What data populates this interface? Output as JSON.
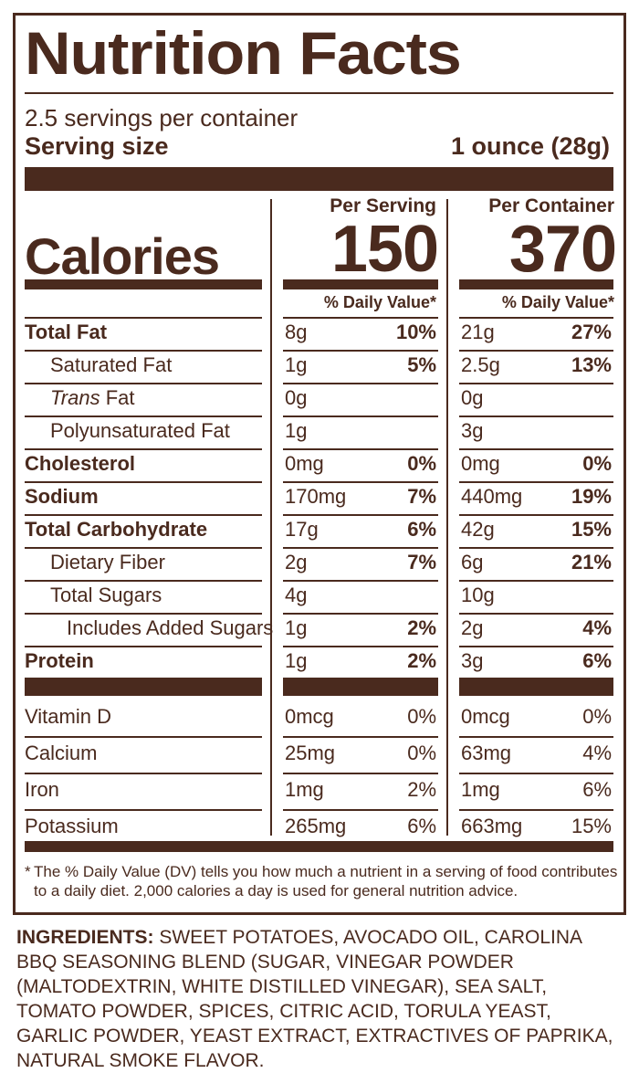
{
  "label": {
    "title": "Nutrition Facts",
    "servings_per_container": "2.5 servings per container",
    "serving_size_label": "Serving size",
    "serving_size_value": "1 ounce (28g)",
    "col_serving": "Per Serving",
    "col_container": "Per Container",
    "calories_label": "Calories",
    "calories_serving": "150",
    "calories_container": "370",
    "dv_header": "% Daily Value*",
    "rows": [
      {
        "label": "Total Fat",
        "bold": true,
        "indent": 0,
        "s_amt": "8g",
        "s_pct": "10%",
        "c_amt": "21g",
        "c_pct": "27%"
      },
      {
        "label": "Saturated Fat",
        "bold": false,
        "indent": 1,
        "s_amt": "1g",
        "s_pct": "5%",
        "c_amt": "2.5g",
        "c_pct": "13%"
      },
      {
        "label": "Trans Fat",
        "bold": false,
        "indent": 1,
        "s_amt": "0g",
        "s_pct": "",
        "c_amt": "0g",
        "c_pct": ""
      },
      {
        "label": "Polyunsaturated Fat",
        "bold": false,
        "indent": 1,
        "s_amt": "1g",
        "s_pct": "",
        "c_amt": "3g",
        "c_pct": ""
      },
      {
        "label": "Cholesterol",
        "bold": true,
        "indent": 0,
        "s_amt": "0mg",
        "s_pct": "0%",
        "c_amt": "0mg",
        "c_pct": "0%"
      },
      {
        "label": "Sodium",
        "bold": true,
        "indent": 0,
        "s_amt": "170mg",
        "s_pct": "7%",
        "c_amt": "440mg",
        "c_pct": "19%"
      },
      {
        "label": "Total Carbohydrate",
        "bold": true,
        "indent": 0,
        "s_amt": "17g",
        "s_pct": "6%",
        "c_amt": "42g",
        "c_pct": "15%"
      },
      {
        "label": "Dietary Fiber",
        "bold": false,
        "indent": 1,
        "s_amt": "2g",
        "s_pct": "7%",
        "c_amt": "6g",
        "c_pct": "21%"
      },
      {
        "label": "Total Sugars",
        "bold": false,
        "indent": 1,
        "s_amt": "4g",
        "s_pct": "",
        "c_amt": "10g",
        "c_pct": ""
      },
      {
        "label": "Includes Added Sugars",
        "bold": false,
        "indent": 2,
        "s_amt": "1g",
        "s_pct": "2%",
        "c_amt": "2g",
        "c_pct": "4%"
      },
      {
        "label": "Protein",
        "bold": true,
        "indent": 0,
        "s_amt": "1g",
        "s_pct": "2%",
        "c_amt": "3g",
        "c_pct": "6%"
      }
    ],
    "vitamins": [
      {
        "label": "Vitamin D",
        "s_amt": "0mcg",
        "s_pct": "0%",
        "c_amt": "0mcg",
        "c_pct": "0%"
      },
      {
        "label": "Calcium",
        "s_amt": "25mg",
        "s_pct": "0%",
        "c_amt": "63mg",
        "c_pct": "4%"
      },
      {
        "label": "Iron",
        "s_amt": "1mg",
        "s_pct": "2%",
        "c_amt": "1mg",
        "c_pct": "6%"
      },
      {
        "label": "Potassium",
        "s_amt": "265mg",
        "s_pct": "6%",
        "c_amt": "663mg",
        "c_pct": "15%"
      }
    ],
    "footnote_star": "*",
    "footnote": "The % Daily Value (DV) tells you how much a nutrient in a serving of food contributes to a daily diet. 2,000 calories a day is used for general nutrition advice."
  },
  "ingredients": {
    "heading": "INGREDIENTS:",
    "text": "SWEET POTATOES, AVOCADO OIL, CAROLINA BBQ SEASONING BLEND (SUGAR, VINEGAR POWDER (MALTODEXTRIN, WHITE DISTILLED VINEGAR), SEA SALT, TOMATO POWDER, SPICES, CITRIC ACID, TORULA YEAST, GARLIC POWDER, YEAST EXTRACT, EXTRACTIVES OF PAPRIKA, NATURAL SMOKE FLAVOR."
  },
  "colors": {
    "ink": "#4a2a1e"
  }
}
